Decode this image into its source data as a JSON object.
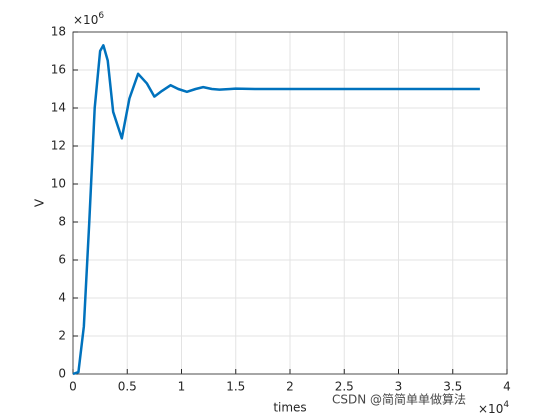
{
  "chart_data": {
    "type": "line",
    "xlabel": "times",
    "ylabel": "V",
    "x_multiplier": {
      "base": "×10",
      "power": "4"
    },
    "y_multiplier": {
      "base": "×10",
      "power": "6"
    },
    "x": [
      0,
      0.05,
      0.1,
      0.15,
      0.2,
      0.25,
      0.28,
      0.32,
      0.37,
      0.45,
      0.52,
      0.6,
      0.68,
      0.75,
      0.82,
      0.9,
      0.97,
      1.05,
      1.13,
      1.2,
      1.28,
      1.35,
      1.45,
      1.5,
      1.7,
      2,
      2.5,
      3,
      3.5,
      3.75
    ],
    "series": [
      {
        "color": "#0072bd",
        "values": [
          0,
          0.1,
          2.5,
          8,
          14,
          17,
          17.3,
          16.5,
          13.8,
          12.4,
          14.5,
          15.8,
          15.3,
          14.6,
          14.9,
          15.2,
          15.0,
          14.85,
          15.0,
          15.1,
          15.0,
          14.97,
          15.0,
          15.02,
          15,
          15,
          15,
          15,
          15,
          15
        ]
      }
    ],
    "xlim": [
      0,
      4
    ],
    "xticks": [
      0,
      0.5,
      1,
      1.5,
      2,
      2.5,
      3,
      3.5,
      4
    ],
    "ylim": [
      0,
      18
    ],
    "yticks": [
      0,
      2,
      4,
      6,
      8,
      10,
      12,
      14,
      16,
      18
    ],
    "grid": true
  },
  "watermark": "CSDN @简简单单做算法"
}
